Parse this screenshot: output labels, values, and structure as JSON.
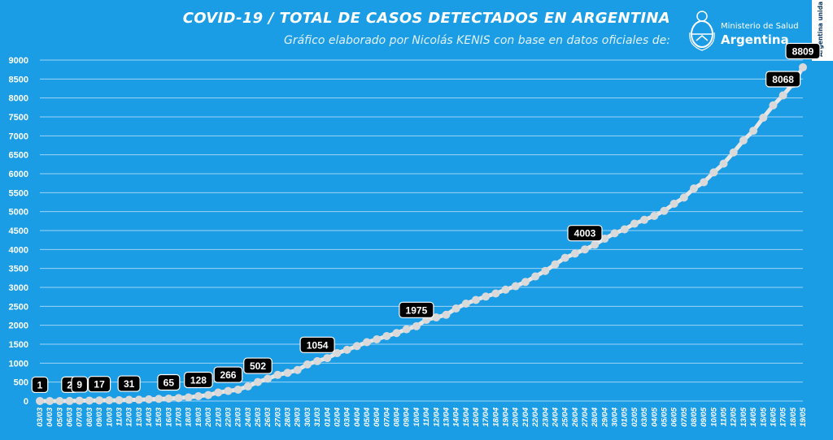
{
  "header": {
    "title": "COVID-19  /  TOTAL DE CASOS DETECTADOS EN ARGENTINA",
    "subtitle": "Gráfico elaborado por Nicolás KENIS con base en datos oficiales de:"
  },
  "logo": {
    "line1": "Ministerio de Salud",
    "line2": "Argentina",
    "icon": "coat-of-arms-icon"
  },
  "side_tag": "Argentina unida",
  "colors": {
    "background": "#1b9de6",
    "line": "#e6e6e6",
    "marker": "#d9d9d9",
    "gridline": "#9fd3f4",
    "label_box": "#000000"
  },
  "chart_data": {
    "type": "line",
    "title": "COVID-19  /  TOTAL DE CASOS DETECTADOS EN ARGENTINA",
    "xlabel": "",
    "ylabel": "",
    "ylim": [
      0,
      9000
    ],
    "yticks": [
      0,
      500,
      1000,
      1500,
      2000,
      2500,
      3000,
      3500,
      4000,
      4500,
      5000,
      5500,
      6000,
      6500,
      7000,
      7500,
      8000,
      8500,
      9000
    ],
    "grid": true,
    "legend": "none",
    "x": [
      "03/03",
      "04/03",
      "05/03",
      "06/03",
      "07/03",
      "08/03",
      "09/03",
      "10/03",
      "11/03",
      "12/03",
      "13/03",
      "14/03",
      "15/03",
      "16/03",
      "17/03",
      "18/03",
      "19/03",
      "20/03",
      "21/03",
      "22/03",
      "23/03",
      "24/03",
      "25/03",
      "26/03",
      "27/03",
      "28/03",
      "29/03",
      "30/03",
      "31/03",
      "01/04",
      "02/04",
      "03/04",
      "04/04",
      "05/04",
      "06/04",
      "07/04",
      "08/04",
      "09/04",
      "10/04",
      "11/04",
      "12/04",
      "13/04",
      "14/04",
      "15/04",
      "16/04",
      "17/04",
      "18/04",
      "19/04",
      "20/04",
      "21/04",
      "22/04",
      "23/04",
      "24/04",
      "25/04",
      "26/04",
      "27/04",
      "28/04",
      "29/04",
      "30/04",
      "01/05",
      "02/05",
      "03/05",
      "04/05",
      "05/05",
      "06/05",
      "07/05",
      "08/05",
      "09/05",
      "10/05",
      "11/05",
      "12/05",
      "13/05",
      "14/05",
      "15/05",
      "16/05",
      "17/05",
      "18/05",
      "19/05"
    ],
    "series": [
      {
        "values": [
          1,
          1,
          1,
          2,
          9,
          12,
          17,
          19,
          21,
          31,
          34,
          45,
          56,
          65,
          79,
          97,
          128,
          158,
          225,
          266,
          301,
          387,
          502,
          589,
          690,
          745,
          820,
          966,
          1054,
          1133,
          1265,
          1353,
          1451,
          1554,
          1628,
          1715,
          1795,
          1894,
          1975,
          2142,
          2208,
          2277,
          2443,
          2571,
          2669,
          2758,
          2839,
          2941,
          3031,
          3144,
          3288,
          3435,
          3607,
          3780,
          3892,
          4003,
          4127,
          4285,
          4428,
          4532,
          4681,
          4783,
          4887,
          5020,
          5208,
          5371,
          5611,
          5776,
          6034,
          6265,
          6563,
          6879,
          7134,
          7479,
          7805,
          8068,
          8371,
          8809
        ]
      }
    ],
    "data_labels": [
      {
        "x": "03/03",
        "value": 1,
        "text": "1"
      },
      {
        "x": "06/03",
        "value": 2,
        "text": "2"
      },
      {
        "x": "07/03",
        "value": 9,
        "text": "9"
      },
      {
        "x": "09/03",
        "value": 17,
        "text": "17"
      },
      {
        "x": "12/03",
        "value": 31,
        "text": "31"
      },
      {
        "x": "16/03",
        "value": 65,
        "text": "65"
      },
      {
        "x": "19/03",
        "value": 128,
        "text": "128"
      },
      {
        "x": "22/03",
        "value": 266,
        "text": "266"
      },
      {
        "x": "25/03",
        "value": 502,
        "text": "502"
      },
      {
        "x": "31/03",
        "value": 1054,
        "text": "1054"
      },
      {
        "x": "10/04",
        "value": 1975,
        "text": "1975"
      },
      {
        "x": "27/04",
        "value": 4003,
        "text": "4003"
      },
      {
        "x": "17/05",
        "value": 8068,
        "text": "8068"
      },
      {
        "x": "19/05",
        "value": 8809,
        "text": "8809"
      }
    ]
  }
}
